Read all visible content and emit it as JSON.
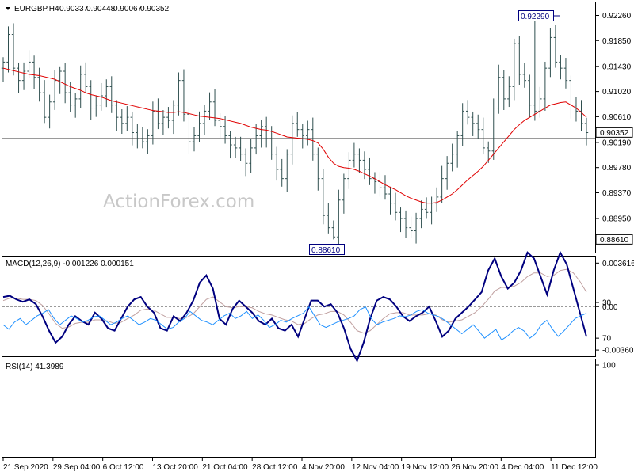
{
  "chart_data": [
    {
      "type": "candlestick",
      "symbol": "EURGBP,H4",
      "ohlc": {
        "open": "0.90337",
        "high": "0.90448",
        "low": "0.90067",
        "close": "0.90352"
      },
      "ylim": [
        0.8846,
        0.9246
      ],
      "yticks": [
        "0.92260",
        "0.91850",
        "0.91430",
        "0.91020",
        "0.90610",
        "0.90190",
        "0.89780",
        "0.89370",
        "0.88950"
      ],
      "current_price": "0.90352",
      "swing_high": {
        "label": "0.92290",
        "value": 0.9229
      },
      "swing_low": {
        "label": "0.88610",
        "value": 0.8861
      },
      "support_line_label": "0.88610",
      "moving_average_color": "#e00000",
      "candle_color": "#2f4f4f",
      "closes": [
        0.915,
        0.9195,
        0.914,
        0.912,
        0.9135,
        0.915,
        0.9125,
        0.91,
        0.906,
        0.9085,
        0.912,
        0.9135,
        0.91,
        0.908,
        0.909,
        0.913,
        0.911,
        0.9075,
        0.908,
        0.9095,
        0.911,
        0.908,
        0.906,
        0.905,
        0.906,
        0.9035,
        0.9025,
        0.902,
        0.903,
        0.907,
        0.905,
        0.906,
        0.9055,
        0.908,
        0.912,
        0.9065,
        0.902,
        0.903,
        0.905,
        0.907,
        0.9085,
        0.9055,
        0.9045,
        0.903,
        0.9015,
        0.901,
        0.9,
        0.8985,
        0.901,
        0.903,
        0.9045,
        0.9025,
        0.9,
        0.8975,
        0.896,
        0.9,
        0.905,
        0.904,
        0.903,
        0.904,
        0.9,
        0.896,
        0.89,
        0.888,
        0.8865,
        0.8925,
        0.896,
        0.899,
        0.9,
        0.899,
        0.8975,
        0.896,
        0.8955,
        0.8945,
        0.8935,
        0.892,
        0.8905,
        0.8895,
        0.888,
        0.8875,
        0.8895,
        0.891,
        0.8905,
        0.892,
        0.893,
        0.896,
        0.8985,
        0.9,
        0.903,
        0.907,
        0.906,
        0.905,
        0.904,
        0.901,
        0.9005,
        0.9075,
        0.9125,
        0.909,
        0.911,
        0.918,
        0.913,
        0.912,
        0.908,
        0.907,
        0.909,
        0.914,
        0.919,
        0.915,
        0.914,
        0.912,
        0.908,
        0.907,
        0.905,
        0.9035
      ],
      "ma": [
        0.914,
        0.9138,
        0.9136,
        0.9134,
        0.9132,
        0.913,
        0.9129,
        0.9128,
        0.9126,
        0.9124,
        0.9122,
        0.9118,
        0.9114,
        0.911,
        0.9107,
        0.9104,
        0.91,
        0.9097,
        0.9095,
        0.9093,
        0.909,
        0.9087,
        0.9085,
        0.9083,
        0.9081,
        0.9079,
        0.9077,
        0.9075,
        0.9073,
        0.9071,
        0.907,
        0.9069,
        0.9068,
        0.9068,
        0.9069,
        0.9068,
        0.9066,
        0.9064,
        0.9062,
        0.9061,
        0.906,
        0.9059,
        0.9058,
        0.9056,
        0.9054,
        0.9052,
        0.905,
        0.9047,
        0.9044,
        0.9042,
        0.904,
        0.9039,
        0.9037,
        0.9034,
        0.9031,
        0.9028,
        0.9027,
        0.9026,
        0.9025,
        0.9024,
        0.9022,
        0.9018,
        0.9008,
        0.8995,
        0.8985,
        0.898,
        0.8978,
        0.8977,
        0.8975,
        0.8972,
        0.8968,
        0.8964,
        0.896,
        0.8955,
        0.895,
        0.8946,
        0.8942,
        0.8937,
        0.8932,
        0.8928,
        0.8925,
        0.8922,
        0.892,
        0.892,
        0.8921,
        0.8925,
        0.893,
        0.8935,
        0.8942,
        0.895,
        0.8958,
        0.8965,
        0.8972,
        0.898,
        0.899,
        0.9,
        0.901,
        0.902,
        0.903,
        0.904,
        0.9048,
        0.9055,
        0.906,
        0.9065,
        0.907,
        0.9075,
        0.908,
        0.9082,
        0.9084,
        0.9085,
        0.908,
        0.9075,
        0.9068,
        0.906
      ]
    },
    {
      "type": "line",
      "label": "MACD(12,26,9) -0.001226 0.000151",
      "ylim": [
        -0.0038,
        0.0039
      ],
      "yticks": [
        "0.003616",
        "0.00",
        "-0.003609"
      ],
      "value_marker": "0.00",
      "series": [
        {
          "color": "#00007f",
          "values": [
            0.0008,
            0.0009,
            0.0006,
            0.0004,
            0.0006,
            0.0002,
            -0.0008,
            -0.002,
            -0.003,
            -0.0025,
            -0.0015,
            -0.0008,
            -0.0012,
            -0.0015,
            -0.0005,
            -0.001,
            -0.0018,
            -0.002,
            -0.001,
            0.0,
            0.0006,
            0.0008,
            0.0,
            -0.0005,
            -0.0018,
            -0.002,
            -0.0008,
            -0.0012,
            -0.0005,
            0.0005,
            0.002,
            0.0026,
            0.0015,
            -0.001,
            -0.0015,
            -0.0002,
            0.0005,
            0.0,
            -0.0005,
            -0.0012,
            -0.0015,
            -0.001,
            -0.0018,
            -0.002,
            -0.0015,
            -0.0025,
            -0.001,
            0.0005,
            0.0005,
            0.0,
            0.0002,
            -0.0005,
            -0.0018,
            -0.0035,
            -0.0045,
            -0.003,
            -0.001,
            0.0005,
            0.0008,
            0.0006,
            0.0,
            -0.0008,
            -0.0012,
            -0.0008,
            -0.0005,
            0.0,
            -0.0012,
            -0.0025,
            -0.002,
            -0.001,
            -0.0005,
            0.0,
            0.0006,
            0.0012,
            0.003,
            0.004,
            0.0025,
            0.0015,
            0.002,
            0.003,
            0.0045,
            0.004,
            0.0025,
            0.001,
            0.003,
            0.0045,
            0.0035,
            0.0015,
            -0.0005,
            -0.0025
          ]
        },
        {
          "color": "#c0a0a0",
          "values": [
            0.0005,
            0.0007,
            0.0007,
            0.0006,
            0.0006,
            0.0005,
            0.0001,
            -0.0006,
            -0.0014,
            -0.0018,
            -0.0017,
            -0.0014,
            -0.0013,
            -0.0013,
            -0.0011,
            -0.0011,
            -0.0012,
            -0.0014,
            -0.0013,
            -0.001,
            -0.0007,
            -0.0003,
            -0.0002,
            -0.0003,
            -0.0006,
            -0.0009,
            -0.0009,
            -0.001,
            -0.0009,
            -0.0006,
            0.0,
            0.0006,
            0.0008,
            0.0004,
            0.0,
            -0.0001,
            0.0,
            0.0,
            -0.0001,
            -0.0004,
            -0.0006,
            -0.0007,
            -0.0009,
            -0.0011,
            -0.0012,
            -0.0015,
            -0.0014,
            -0.001,
            -0.0007,
            -0.0006,
            -0.0004,
            -0.0004,
            -0.0007,
            -0.0013,
            -0.002,
            -0.0022,
            -0.002,
            -0.0015,
            -0.001,
            -0.0006,
            -0.0005,
            -0.0005,
            -0.0007,
            -0.0007,
            -0.0007,
            -0.0006,
            -0.0007,
            -0.0011,
            -0.0013,
            -0.0012,
            -0.0011,
            -0.0008,
            -0.0005,
            0.0,
            0.0006,
            0.0013,
            0.0016,
            0.0016,
            0.0017,
            0.002,
            0.0025,
            0.0028,
            0.0028,
            0.0025,
            0.0026,
            0.003,
            0.0031,
            0.0028,
            0.0021,
            0.0012
          ]
        }
      ]
    },
    {
      "type": "line",
      "label": "RSI(14) 41.3989",
      "ylim": [
        0,
        100
      ],
      "yticks": [
        "100",
        "70",
        "30"
      ],
      "levels": [
        70,
        30
      ],
      "series": [
        {
          "color": "#1e90ff",
          "values": [
            55,
            60,
            52,
            48,
            55,
            50,
            45,
            42,
            38,
            48,
            55,
            50,
            45,
            48,
            52,
            50,
            46,
            45,
            50,
            55,
            52,
            48,
            45,
            50,
            55,
            52,
            48,
            50,
            55,
            60,
            58,
            52,
            48,
            40,
            45,
            50,
            52,
            55,
            50,
            45,
            42,
            48,
            45,
            40,
            48,
            44,
            50,
            58,
            55,
            50,
            52,
            48,
            45,
            42,
            35,
            45,
            55,
            58,
            55,
            52,
            50,
            48,
            45,
            38,
            35,
            48,
            55,
            52,
            50,
            48,
            45,
            46,
            44,
            40,
            38,
            42,
            44,
            46,
            50,
            55,
            60,
            65,
            60,
            55,
            62,
            70,
            65,
            60,
            72,
            68,
            62,
            58,
            62,
            70,
            65,
            55,
            50,
            60,
            68,
            62,
            55,
            48,
            45,
            42
          ]
        }
      ]
    }
  ],
  "x_axis_labels": [
    "21 Sep 2020",
    "29 Sep 04:00",
    "6 Oct 12:00",
    "13 Oct 20:00",
    "21 Oct 04:00",
    "28 Oct 12:00",
    "4 Nov 20:00",
    "12 Nov 04:00",
    "19 Nov 12:00",
    "26 Nov 20:00",
    "4 Dec 04:00",
    "11 Dec 12:00"
  ],
  "watermark": "ActionForex.com"
}
